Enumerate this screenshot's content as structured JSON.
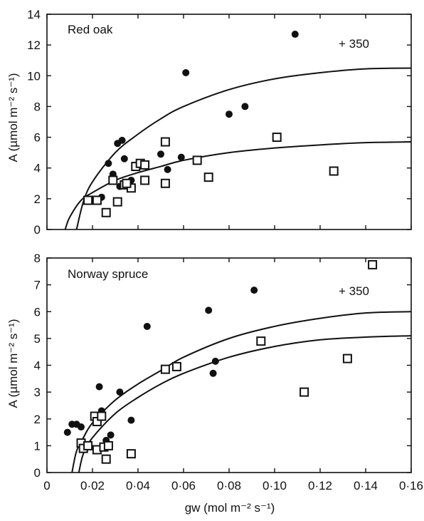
{
  "chart_data": [
    {
      "type": "scatter",
      "title": "Red oak",
      "annotation": "+ 350",
      "ylabel": "A (µmol m⁻² s⁻¹)",
      "xlim": [
        0,
        0.16
      ],
      "ylim": [
        0,
        14
      ],
      "xticks": [
        0,
        0.02,
        0.04,
        0.06,
        0.08,
        0.1,
        0.12,
        0.14,
        0.16
      ],
      "xtick_labels": [
        "",
        "",
        "",
        "",
        "",
        "",
        "",
        "",
        ""
      ],
      "yticks": [
        0,
        2,
        4,
        6,
        8,
        10,
        12,
        14
      ],
      "ytick_labels": [
        "0",
        "2",
        "4",
        "6",
        "8",
        "10",
        "12",
        "14"
      ],
      "grid": false,
      "series": [
        {
          "marker": "filled-circle",
          "points": [
            [
              0.027,
              4.3
            ],
            [
              0.029,
              3.6
            ],
            [
              0.031,
              5.6
            ],
            [
              0.033,
              5.8
            ],
            [
              0.034,
              4.6
            ],
            [
              0.037,
              3.2
            ],
            [
              0.05,
              4.9
            ],
            [
              0.053,
              3.9
            ],
            [
              0.059,
              4.7
            ],
            [
              0.061,
              10.2
            ],
            [
              0.08,
              7.5
            ],
            [
              0.087,
              8.0
            ],
            [
              0.109,
              12.7
            ],
            [
              0.024,
              2.1
            ],
            [
              0.032,
              2.8
            ]
          ]
        },
        {
          "marker": "open-square",
          "points": [
            [
              0.018,
              1.9
            ],
            [
              0.022,
              1.9
            ],
            [
              0.026,
              1.1
            ],
            [
              0.029,
              3.2
            ],
            [
              0.031,
              1.8
            ],
            [
              0.034,
              2.9
            ],
            [
              0.037,
              2.7
            ],
            [
              0.039,
              4.1
            ],
            [
              0.041,
              4.3
            ],
            [
              0.043,
              4.2
            ],
            [
              0.043,
              3.2
            ],
            [
              0.052,
              5.7
            ],
            [
              0.052,
              3.0
            ],
            [
              0.066,
              4.5
            ],
            [
              0.071,
              3.4
            ],
            [
              0.101,
              6.0
            ],
            [
              0.126,
              3.8
            ],
            [
              0.035,
              3.0
            ]
          ]
        }
      ],
      "curves": [
        {
          "label": "+ 350",
          "points": [
            [
              0.013,
              0.0
            ],
            [
              0.016,
              1.8
            ],
            [
              0.02,
              3.1
            ],
            [
              0.03,
              5.0
            ],
            [
              0.04,
              6.2
            ],
            [
              0.05,
              7.2
            ],
            [
              0.06,
              8.0
            ],
            [
              0.08,
              9.1
            ],
            [
              0.1,
              9.8
            ],
            [
              0.12,
              10.2
            ],
            [
              0.14,
              10.45
            ],
            [
              0.16,
              10.5
            ]
          ]
        },
        {
          "label": "",
          "points": [
            [
              0.008,
              0.0
            ],
            [
              0.01,
              0.8
            ],
            [
              0.015,
              1.9
            ],
            [
              0.02,
              2.4
            ],
            [
              0.03,
              3.2
            ],
            [
              0.04,
              3.7
            ],
            [
              0.05,
              4.1
            ],
            [
              0.06,
              4.5
            ],
            [
              0.08,
              5.0
            ],
            [
              0.1,
              5.3
            ],
            [
              0.12,
              5.5
            ],
            [
              0.14,
              5.65
            ],
            [
              0.16,
              5.7
            ]
          ]
        }
      ]
    },
    {
      "type": "scatter",
      "title": "Norway spruce",
      "annotation": "+ 350",
      "xlabel": "gw (mol m⁻² s⁻¹)",
      "ylabel": "A (µmol m⁻² s⁻¹)",
      "xlim": [
        0,
        0.16
      ],
      "ylim": [
        0,
        8
      ],
      "xticks": [
        0,
        0.02,
        0.04,
        0.06,
        0.08,
        0.1,
        0.12,
        0.14,
        0.16
      ],
      "xtick_labels": [
        "0",
        "0·02",
        "0·04",
        "0·06",
        "0·08",
        "0·10",
        "0·12",
        "0·14",
        "0·16"
      ],
      "yticks": [
        0,
        1,
        2,
        3,
        4,
        5,
        6,
        7,
        8
      ],
      "ytick_labels": [
        "0",
        "1",
        "2",
        "3",
        "4",
        "5",
        "6",
        "7",
        "8"
      ],
      "grid": false,
      "series": [
        {
          "marker": "filled-circle",
          "points": [
            [
              0.009,
              1.5
            ],
            [
              0.011,
              1.8
            ],
            [
              0.013,
              1.8
            ],
            [
              0.015,
              1.7
            ],
            [
              0.023,
              3.2
            ],
            [
              0.024,
              2.3
            ],
            [
              0.026,
              1.2
            ],
            [
              0.028,
              1.4
            ],
            [
              0.032,
              3.0
            ],
            [
              0.037,
              1.95
            ],
            [
              0.044,
              5.45
            ],
            [
              0.071,
              6.05
            ],
            [
              0.073,
              3.7
            ],
            [
              0.074,
              4.15
            ],
            [
              0.091,
              6.8
            ]
          ]
        },
        {
          "marker": "open-square",
          "points": [
            [
              0.015,
              1.1
            ],
            [
              0.016,
              0.9
            ],
            [
              0.018,
              1.0
            ],
            [
              0.021,
              2.1
            ],
            [
              0.022,
              1.9
            ],
            [
              0.022,
              0.85
            ],
            [
              0.024,
              2.1
            ],
            [
              0.025,
              0.95
            ],
            [
              0.026,
              0.5
            ],
            [
              0.027,
              1.0
            ],
            [
              0.037,
              0.7
            ],
            [
              0.052,
              3.85
            ],
            [
              0.057,
              3.95
            ],
            [
              0.094,
              4.9
            ],
            [
              0.113,
              3.0
            ],
            [
              0.132,
              4.25
            ],
            [
              0.143,
              7.75
            ]
          ]
        }
      ],
      "curves": [
        {
          "label": "+ 350",
          "points": [
            [
              0.011,
              0.0
            ],
            [
              0.013,
              0.8
            ],
            [
              0.016,
              1.3
            ],
            [
              0.02,
              1.85
            ],
            [
              0.03,
              2.7
            ],
            [
              0.04,
              3.3
            ],
            [
              0.05,
              3.8
            ],
            [
              0.06,
              4.3
            ],
            [
              0.08,
              5.0
            ],
            [
              0.1,
              5.45
            ],
            [
              0.12,
              5.75
            ],
            [
              0.14,
              5.95
            ],
            [
              0.16,
              6.0
            ]
          ]
        },
        {
          "label": "",
          "points": [
            [
              0.014,
              0.0
            ],
            [
              0.016,
              0.7
            ],
            [
              0.02,
              1.3
            ],
            [
              0.03,
              2.2
            ],
            [
              0.04,
              2.8
            ],
            [
              0.05,
              3.3
            ],
            [
              0.06,
              3.7
            ],
            [
              0.08,
              4.3
            ],
            [
              0.1,
              4.7
            ],
            [
              0.12,
              4.95
            ],
            [
              0.14,
              5.05
            ],
            [
              0.16,
              5.1
            ]
          ]
        }
      ]
    }
  ]
}
